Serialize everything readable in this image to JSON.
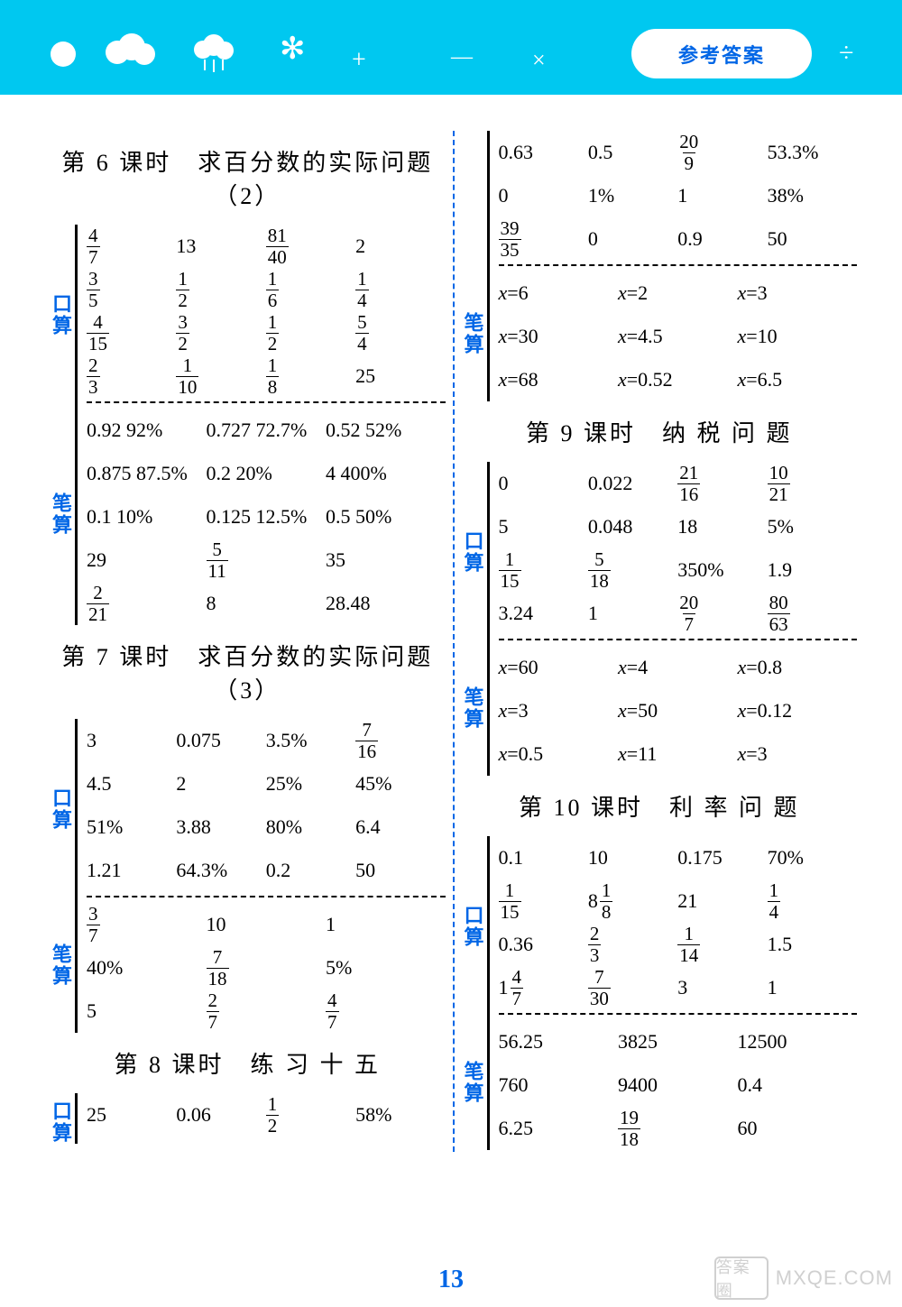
{
  "header": {
    "badge": "参考答案"
  },
  "page_number": "13",
  "watermark": {
    "box": "答案圈",
    "url": "MXQE.COM"
  },
  "left": {
    "sections": [
      {
        "title": "第 6 课时　求百分数的实际问题（2）",
        "blocks": [
          {
            "label": "口算",
            "rows": [
              [
                {
                  "f": [
                    4,
                    7
                  ]
                },
                "13",
                {
                  "f": [
                    81,
                    40
                  ]
                },
                "2"
              ],
              [
                {
                  "f": [
                    3,
                    5
                  ]
                },
                {
                  "f": [
                    1,
                    2
                  ]
                },
                {
                  "f": [
                    1,
                    6
                  ]
                },
                {
                  "f": [
                    1,
                    4
                  ]
                }
              ],
              [
                {
                  "f": [
                    4,
                    15
                  ]
                },
                {
                  "f": [
                    3,
                    2
                  ]
                },
                {
                  "f": [
                    1,
                    2
                  ]
                },
                {
                  "f": [
                    5,
                    4
                  ]
                }
              ],
              [
                {
                  "f": [
                    2,
                    3
                  ]
                },
                {
                  "f": [
                    1,
                    10
                  ]
                },
                {
                  "f": [
                    1,
                    8
                  ]
                },
                "25"
              ]
            ]
          },
          {
            "label": "笔算",
            "rows": [
              [
                "0.92 92%",
                "0.727 72.7%",
                "0.52 52%"
              ],
              [
                "0.875  87.5%",
                "0.2  20%",
                "4  400%"
              ],
              [
                "0.1  10%",
                "0.125  12.5%",
                "0.5  50%"
              ],
              [
                "29",
                {
                  "f": [
                    5,
                    11
                  ]
                },
                "35"
              ],
              [
                {
                  "f": [
                    2,
                    21
                  ]
                },
                "8",
                "28.48"
              ]
            ]
          }
        ]
      },
      {
        "title": "第 7 课时　求百分数的实际问题（3）",
        "blocks": [
          {
            "label": "口算",
            "rows": [
              [
                "3",
                "0.075",
                "3.5%",
                {
                  "f": [
                    7,
                    16
                  ]
                }
              ],
              [
                "4.5",
                "2",
                "25%",
                "45%"
              ],
              [
                "51%",
                "3.88",
                "80%",
                "6.4"
              ],
              [
                "1.21",
                "64.3%",
                "0.2",
                "50"
              ]
            ]
          },
          {
            "label": "笔算",
            "rows": [
              [
                {
                  "f": [
                    3,
                    7
                  ]
                },
                "10",
                "1"
              ],
              [
                "40%",
                {
                  "f": [
                    7,
                    18
                  ]
                },
                "5%"
              ],
              [
                "5",
                {
                  "f": [
                    2,
                    7
                  ]
                },
                {
                  "f": [
                    4,
                    7
                  ]
                }
              ]
            ]
          }
        ]
      },
      {
        "title": "第 8 课时　练 习 十 五",
        "blocks": [
          {
            "label": "口算",
            "rows": [
              [
                "25",
                "0.06",
                {
                  "f": [
                    1,
                    2
                  ]
                },
                "58%"
              ]
            ]
          }
        ]
      }
    ]
  },
  "right": {
    "sections": [
      {
        "title": null,
        "blocks": [
          {
            "label": null,
            "rows": [
              [
                "0.63",
                "0.5",
                {
                  "f": [
                    20,
                    9
                  ]
                },
                "53.3%"
              ],
              [
                "0",
                "1%",
                "1",
                "38%"
              ],
              [
                {
                  "f": [
                    39,
                    35
                  ]
                },
                "0",
                "0.9",
                "50"
              ]
            ]
          },
          {
            "label": "笔算",
            "rows": [
              [
                {
                  "eq": "x=6"
                },
                {
                  "eq": "x=2"
                },
                {
                  "eq": "x=3"
                }
              ],
              [
                {
                  "eq": "x=30"
                },
                {
                  "eq": "x=4.5"
                },
                {
                  "eq": "x=10"
                }
              ],
              [
                {
                  "eq": "x=68"
                },
                {
                  "eq": "x=0.52"
                },
                {
                  "eq": "x=6.5"
                }
              ]
            ]
          }
        ]
      },
      {
        "title": "第 9 课时　纳 税 问 题",
        "blocks": [
          {
            "label": "口算",
            "rows": [
              [
                "0",
                "0.022",
                {
                  "f": [
                    21,
                    16
                  ]
                },
                {
                  "f": [
                    10,
                    21
                  ]
                }
              ],
              [
                "5",
                "0.048",
                "18",
                "5%"
              ],
              [
                {
                  "f": [
                    1,
                    15
                  ]
                },
                {
                  "f": [
                    5,
                    18
                  ]
                },
                "350%",
                "1.9"
              ],
              [
                "3.24",
                "1",
                {
                  "f": [
                    20,
                    7
                  ]
                },
                {
                  "f": [
                    80,
                    63
                  ]
                }
              ]
            ]
          },
          {
            "label": "笔算",
            "rows": [
              [
                {
                  "eq": "x=60"
                },
                {
                  "eq": "x=4"
                },
                {
                  "eq": "x=0.8"
                }
              ],
              [
                {
                  "eq": "x=3"
                },
                {
                  "eq": "x=50"
                },
                {
                  "eq": "x=0.12"
                }
              ],
              [
                {
                  "eq": "x=0.5"
                },
                {
                  "eq": "x=11"
                },
                {
                  "eq": "x=3"
                }
              ]
            ]
          }
        ]
      },
      {
        "title": "第 10 课时　利 率 问 题",
        "blocks": [
          {
            "label": "口算",
            "rows": [
              [
                "0.1",
                "10",
                "0.175",
                "70%"
              ],
              [
                {
                  "f": [
                    1,
                    15
                  ]
                },
                {
                  "m": [
                    8,
                    1,
                    8
                  ]
                },
                "21",
                {
                  "f": [
                    1,
                    4
                  ]
                }
              ],
              [
                "0.36",
                {
                  "f": [
                    2,
                    3
                  ]
                },
                {
                  "f": [
                    1,
                    14
                  ]
                },
                "1.5"
              ],
              [
                {
                  "m": [
                    1,
                    4,
                    7
                  ]
                },
                {
                  "f": [
                    7,
                    30
                  ]
                },
                "3",
                "1"
              ]
            ]
          },
          {
            "label": "笔算",
            "rows": [
              [
                "56.25",
                "3825",
                "12500"
              ],
              [
                "760",
                "9400",
                "0.4"
              ],
              [
                "6.25",
                {
                  "f": [
                    19,
                    18
                  ]
                },
                "60"
              ]
            ]
          }
        ]
      }
    ]
  }
}
